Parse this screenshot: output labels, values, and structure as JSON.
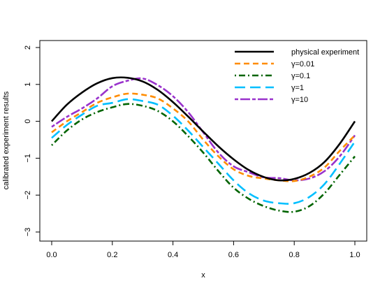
{
  "chart_data": {
    "type": "line",
    "title": "",
    "xlabel": "x",
    "ylabel": "calibrated experiment results",
    "xlim": [
      0,
      1
    ],
    "ylim": [
      -3,
      2
    ],
    "xticks": [
      0.0,
      0.2,
      0.4,
      0.6,
      0.8,
      1.0
    ],
    "xtick_labels": [
      "0.0",
      "0.2",
      "0.4",
      "0.6",
      "0.8",
      "1.0"
    ],
    "yticks": [
      -3,
      -2,
      -1,
      0,
      1,
      2
    ],
    "ytick_labels": [
      "−3",
      "−2",
      "−1",
      "0",
      "1",
      "2"
    ],
    "grid": false,
    "legend_position": "top-right",
    "x": [
      0.0,
      0.05,
      0.1,
      0.15,
      0.2,
      0.25,
      0.3,
      0.35,
      0.4,
      0.45,
      0.5,
      0.55,
      0.6,
      0.65,
      0.7,
      0.75,
      0.8,
      0.85,
      0.9,
      0.95,
      1.0
    ],
    "series": [
      {
        "name": "physical experiment",
        "color": "#000000",
        "dash": "solid",
        "values": [
          0.0,
          0.45,
          0.78,
          1.03,
          1.17,
          1.18,
          1.08,
          0.85,
          0.52,
          0.13,
          -0.28,
          -0.68,
          -1.03,
          -1.32,
          -1.51,
          -1.6,
          -1.56,
          -1.4,
          -1.1,
          -0.61,
          0.0
        ]
      },
      {
        "name": "γ=0.01",
        "color": "#ff8c00",
        "dash": "dashed",
        "values": [
          -0.3,
          0.0,
          0.25,
          0.5,
          0.65,
          0.75,
          0.72,
          0.62,
          0.35,
          0.0,
          -0.5,
          -0.95,
          -1.3,
          -1.48,
          -1.55,
          -1.6,
          -1.62,
          -1.5,
          -1.25,
          -0.8,
          -0.38
        ]
      },
      {
        "name": "γ=0.1",
        "color": "#006400",
        "dash": "dotdash",
        "values": [
          -0.65,
          -0.25,
          0.05,
          0.25,
          0.38,
          0.47,
          0.42,
          0.28,
          0.0,
          -0.4,
          -0.85,
          -1.35,
          -1.8,
          -2.1,
          -2.3,
          -2.42,
          -2.45,
          -2.3,
          -1.95,
          -1.45,
          -0.95
        ]
      },
      {
        "name": "γ=1",
        "color": "#00bfff",
        "dash": "longdash",
        "values": [
          -0.45,
          -0.1,
          0.18,
          0.42,
          0.5,
          0.6,
          0.55,
          0.45,
          0.15,
          -0.25,
          -0.7,
          -1.15,
          -1.6,
          -1.95,
          -2.15,
          -2.22,
          -2.22,
          -2.05,
          -1.7,
          -1.15,
          -0.55
        ]
      },
      {
        "name": "γ=10",
        "color": "#9932cc",
        "dash": "twodash",
        "values": [
          -0.15,
          0.12,
          0.35,
          0.62,
          0.95,
          1.1,
          1.16,
          0.98,
          0.68,
          0.25,
          -0.3,
          -0.85,
          -1.22,
          -1.38,
          -1.52,
          -1.54,
          -1.6,
          -1.55,
          -1.35,
          -0.95,
          -0.38
        ]
      }
    ]
  }
}
